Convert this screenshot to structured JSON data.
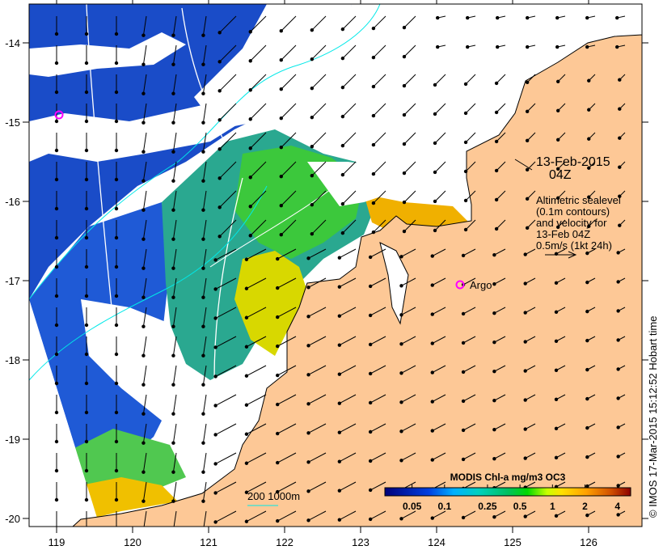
{
  "map": {
    "date_title": "13-Feb-2015",
    "time_title": "04Z",
    "legend_lines": [
      "Altimetric sealevel",
      "(0.1m contours)",
      "and velocity for",
      "13-Feb 04Z",
      "0.5m/s (1kt 24h)"
    ],
    "argo_label": "Argo",
    "scale_label": "200  1000m",
    "credit": "© IMOS 17-Mar-2015 15:12:52 Hobart time",
    "lon_ticks": [
      "119",
      "120",
      "121",
      "122",
      "123",
      "124",
      "125",
      "126"
    ],
    "lat_ticks": [
      "-14",
      "-15",
      "-16",
      "-17",
      "-18",
      "-19",
      "-20"
    ],
    "colors": {
      "land": "#fdc896",
      "marker": "#ff00ff",
      "contour_shallow": "#00e8e8",
      "contour_sealevel": "#ffffff"
    }
  },
  "colorbar": {
    "title": "MODIS Chl-a mg/m3 OC3",
    "range": [
      0.028,
      5.3
    ],
    "ticks": [
      {
        "value": 0.05,
        "label": "0.05"
      },
      {
        "value": 0.1,
        "label": "0.1"
      },
      {
        "value": 0.25,
        "label": "0.25"
      },
      {
        "value": 0.5,
        "label": "0.5"
      },
      {
        "value": 1,
        "label": "1"
      },
      {
        "value": 2,
        "label": "2"
      },
      {
        "value": 4,
        "label": "4"
      }
    ]
  }
}
